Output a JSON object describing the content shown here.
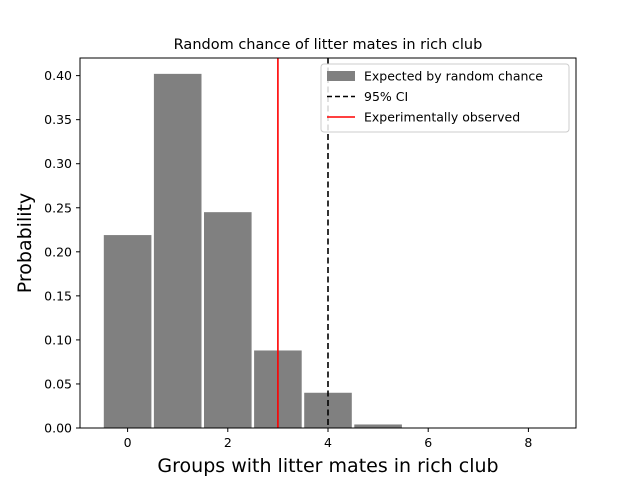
{
  "chart_data": {
    "type": "bar",
    "title": "Random chance of litter mates in rich club",
    "xlabel": "Groups with litter mates in rich club",
    "ylabel": "Probability",
    "xlim": [
      -0.95,
      8.95
    ],
    "ylim": [
      0,
      0.42
    ],
    "x_ticks": [
      0,
      2,
      4,
      6,
      8
    ],
    "y_ticks": [
      0.0,
      0.05,
      0.1,
      0.15,
      0.2,
      0.25,
      0.3,
      0.35,
      0.4
    ],
    "y_tick_labels": [
      "0.00",
      "0.05",
      "0.10",
      "0.15",
      "0.20",
      "0.25",
      "0.30",
      "0.35",
      "0.40"
    ],
    "bar_width": 0.95,
    "series": [
      {
        "name": "Expected by random chance",
        "color": "#808080",
        "x": [
          0,
          1,
          2,
          3,
          4,
          5,
          6,
          7,
          8
        ],
        "values": [
          0.219,
          0.402,
          0.245,
          0.088,
          0.04,
          0.004,
          0.0005,
          0.0001,
          0.0
        ]
      }
    ],
    "reference_lines": [
      {
        "name": "95% CI",
        "x": 4,
        "color": "#000000",
        "style": "dashed"
      },
      {
        "name": "Experimentally observed",
        "x": 3,
        "color": "#ff0000",
        "style": "solid"
      }
    ],
    "legend": {
      "placement": "top-right",
      "entries": [
        {
          "label": "Expected by random chance",
          "kind": "patch",
          "color": "#808080"
        },
        {
          "label": "95% CI",
          "kind": "line-dashed",
          "color": "#000000"
        },
        {
          "label": "Experimentally observed",
          "kind": "line",
          "color": "#ff0000"
        }
      ]
    },
    "grid": false
  }
}
